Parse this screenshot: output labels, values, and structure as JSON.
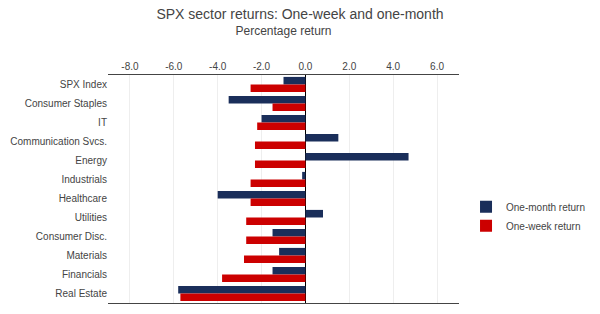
{
  "chart_data": {
    "type": "bar",
    "orientation": "horizontal",
    "title": "SPX sector returns: One-week and one-month",
    "xlabel": "Percentage return",
    "categories": [
      "SPX Index",
      "Consumer Staples",
      "IT",
      "Communication Svcs.",
      "Energy",
      "Industrials",
      "Healthcare",
      "Utilities",
      "Consumer Disc.",
      "Materials",
      "Financials",
      "Real Estate"
    ],
    "series": [
      {
        "name": "One-month return",
        "color": "#1a2e5a",
        "values": [
          -1.0,
          -3.5,
          -2.0,
          1.5,
          4.7,
          -0.15,
          -4.0,
          0.8,
          -1.5,
          -1.2,
          -1.5,
          -5.8
        ]
      },
      {
        "name": "One-week return",
        "color": "#cc0000",
        "values": [
          -2.5,
          -1.5,
          -2.2,
          -2.3,
          -2.3,
          -2.5,
          -2.5,
          -2.7,
          -2.7,
          -2.8,
          -3.8,
          -5.7
        ]
      }
    ],
    "xlim": [
      -9.0,
      7.0
    ],
    "xticks": [
      {
        "value": -8.0,
        "label": "-8.0"
      },
      {
        "value": -6.0,
        "label": "-6.0"
      },
      {
        "value": -4.0,
        "label": "-4.0"
      },
      {
        "value": -2.0,
        "label": "-2.0"
      },
      {
        "value": 0.0,
        "label": "0.0"
      },
      {
        "value": 2.0,
        "label": "2.0"
      },
      {
        "value": 4.0,
        "label": "4.0"
      },
      {
        "value": 6.0,
        "label": "6.0"
      }
    ],
    "grid": true,
    "legend": "right"
  }
}
